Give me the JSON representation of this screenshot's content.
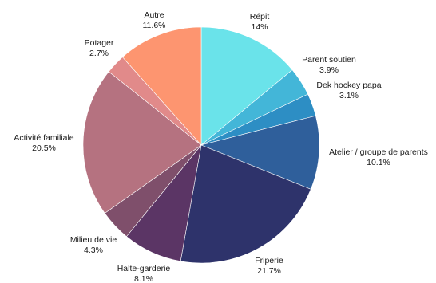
{
  "chart_data": {
    "type": "pie",
    "title": "",
    "start_angle_deg": 0,
    "direction": "clockwise",
    "legend": "none",
    "slices": [
      {
        "label": "Répit",
        "value": 14.0,
        "display": "14%",
        "color": "#6ae3ea"
      },
      {
        "label": "Parent soutien",
        "value": 3.9,
        "display": "3.9%",
        "color": "#43b6d8"
      },
      {
        "label": "Dek hockey papa",
        "value": 3.1,
        "display": "3.1%",
        "color": "#2d8ec4"
      },
      {
        "label": "Atelier / groupe de parents",
        "value": 10.1,
        "display": "10.1%",
        "color": "#2f5f9b"
      },
      {
        "label": "Friperie",
        "value": 21.7,
        "display": "21.7%",
        "color": "#2e336b"
      },
      {
        "label": "Halte-garderie",
        "value": 8.1,
        "display": "8.1%",
        "color": "#5b3565"
      },
      {
        "label": "Milieu de vie",
        "value": 4.3,
        "display": "4.3%",
        "color": "#7f4f6b"
      },
      {
        "label": "Activité familiale",
        "value": 20.5,
        "display": "20.5%",
        "color": "#b57280"
      },
      {
        "label": "Potager",
        "value": 2.7,
        "display": "2.7%",
        "color": "#e18a8a"
      },
      {
        "label": "Autre",
        "value": 11.6,
        "display": "11.6%",
        "color": "#fd9570"
      }
    ]
  }
}
